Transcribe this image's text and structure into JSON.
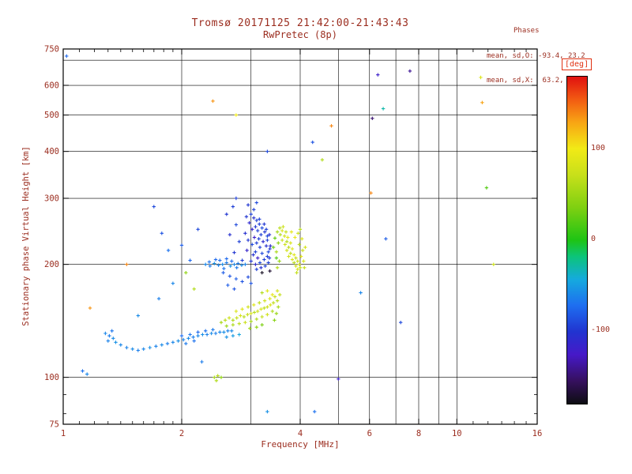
{
  "colors": {
    "ink": "#9b2d1f",
    "frame": "#000000",
    "deg_box_border": "#e03010",
    "background": "#ffffff"
  },
  "chart_data": {
    "type": "scatter",
    "title": "Tromsø 20171125 21:42:00-21:43:43",
    "subtitle": "RwPretec (8p)",
    "annotations": {
      "header": "Phases",
      "o_line": "mean, sd,O: -93.4, 23.2",
      "x_line": "mean, sd,X:  63.2, 19.1"
    },
    "xlabel": "Frequency [MHz]",
    "ylabel": "Stationary phase Virtual Height [km]",
    "xscale": "log",
    "yscale": "log",
    "xlim": [
      1,
      16
    ],
    "ylim": [
      75,
      750
    ],
    "grid": true,
    "xticks": [
      {
        "v": 1,
        "label": "1"
      },
      {
        "v": 2,
        "label": "2"
      },
      {
        "v": 4,
        "label": "4"
      },
      {
        "v": 6,
        "label": "6"
      },
      {
        "v": 8,
        "label": "8"
      },
      {
        "v": 10,
        "label": "10"
      },
      {
        "v": 16,
        "label": "16"
      }
    ],
    "xgrid": [
      2,
      3,
      4,
      5,
      6,
      7,
      8,
      9,
      10
    ],
    "xminor": [
      1.1,
      1.2,
      1.3,
      1.4,
      1.5,
      1.6,
      1.7,
      1.8,
      1.9,
      11,
      12,
      13,
      14,
      15
    ],
    "yticks": [
      {
        "v": 750,
        "label": "750"
      },
      {
        "v": 600,
        "label": "600"
      },
      {
        "v": 500,
        "label": "500"
      },
      {
        "v": 400,
        "label": "400"
      },
      {
        "v": 300,
        "label": "300"
      },
      {
        "v": 200,
        "label": "200"
      },
      {
        "v": 100,
        "label": "100"
      },
      {
        "v": 75,
        "label": "75"
      }
    ],
    "ygrid": [
      100,
      200,
      300,
      400,
      500,
      600,
      700
    ],
    "yminor": [
      80,
      90
    ],
    "colorbar": {
      "label": "[deg]",
      "min": -180,
      "max": 180,
      "ticks": [
        {
          "v": 100,
          "label": "100"
        },
        {
          "v": 0,
          "label": "0"
        },
        {
          "v": -100,
          "label": "-100"
        }
      ],
      "stops": [
        [
          0.0,
          "#0d0d12"
        ],
        [
          0.07,
          "#36105f"
        ],
        [
          0.15,
          "#4619c8"
        ],
        [
          0.22,
          "#2134d0"
        ],
        [
          0.3,
          "#1e6ef0"
        ],
        [
          0.38,
          "#15aade"
        ],
        [
          0.45,
          "#0cc47a"
        ],
        [
          0.5,
          "#1ec414"
        ],
        [
          0.6,
          "#7fd011"
        ],
        [
          0.7,
          "#c8e01a"
        ],
        [
          0.78,
          "#f2ea16"
        ],
        [
          0.86,
          "#f8a514"
        ],
        [
          0.93,
          "#f25b12"
        ],
        [
          1.0,
          "#e01010"
        ]
      ]
    },
    "points_format": [
      "frequency_MHz",
      "virtual_height_km",
      "phase_deg"
    ],
    "points": [
      [
        2.92,
        268,
        -100
      ],
      [
        3.0,
        272,
        -95
      ],
      [
        3.05,
        266,
        -105
      ],
      [
        3.1,
        262,
        -95
      ],
      [
        2.97,
        258,
        -110
      ],
      [
        3.15,
        256,
        -95
      ],
      [
        3.08,
        252,
        -100
      ],
      [
        3.2,
        250,
        -90
      ],
      [
        3.02,
        248,
        -115
      ],
      [
        3.12,
        246,
        -95
      ],
      [
        3.25,
        244,
        -100
      ],
      [
        2.9,
        242,
        -105
      ],
      [
        3.18,
        240,
        -95
      ],
      [
        3.3,
        238,
        -90
      ],
      [
        3.06,
        236,
        -120
      ],
      [
        3.14,
        234,
        -95
      ],
      [
        2.95,
        232,
        -100
      ],
      [
        3.22,
        230,
        -110
      ],
      [
        3.1,
        228,
        -95
      ],
      [
        3.02,
        226,
        -90
      ],
      [
        3.28,
        224,
        -105
      ],
      [
        3.16,
        222,
        -95
      ],
      [
        3.35,
        220,
        -100
      ],
      [
        2.93,
        218,
        -115
      ],
      [
        3.08,
        216,
        -95
      ],
      [
        3.2,
        214,
        -90
      ],
      [
        3.04,
        212,
        -105
      ],
      [
        3.3,
        210,
        -95
      ],
      [
        3.12,
        208,
        -120
      ],
      [
        3.24,
        206,
        -95
      ],
      [
        3.0,
        204,
        -100
      ],
      [
        3.16,
        202,
        -90
      ],
      [
        3.08,
        200,
        -110
      ],
      [
        3.26,
        198,
        -95
      ],
      [
        3.18,
        196,
        -105
      ],
      [
        3.1,
        194,
        -95
      ],
      [
        3.32,
        202,
        -95
      ],
      [
        3.34,
        208,
        -100
      ],
      [
        3.32,
        216,
        -90
      ],
      [
        3.36,
        224,
        -110
      ],
      [
        3.3,
        232,
        -95
      ],
      [
        3.34,
        240,
        -105
      ],
      [
        3.28,
        248,
        -95
      ],
      [
        3.24,
        256,
        -100
      ],
      [
        3.15,
        264,
        -95
      ],
      [
        3.05,
        280,
        -95
      ],
      [
        2.95,
        288,
        -100
      ],
      [
        3.1,
        292,
        -90
      ],
      [
        2.7,
        285,
        -95
      ],
      [
        2.6,
        272,
        -100
      ],
      [
        2.75,
        255,
        -90
      ],
      [
        2.65,
        240,
        -105
      ],
      [
        2.8,
        230,
        -95
      ],
      [
        2.72,
        215,
        -100
      ],
      [
        2.85,
        205,
        -95
      ],
      [
        2.3,
        200,
        -60
      ],
      [
        2.36,
        198,
        -65
      ],
      [
        2.42,
        201,
        -55
      ],
      [
        2.48,
        199,
        -62
      ],
      [
        2.54,
        200,
        -58
      ],
      [
        2.6,
        202,
        -65
      ],
      [
        2.66,
        198,
        -55
      ],
      [
        2.72,
        200,
        -60
      ],
      [
        2.78,
        201,
        -65
      ],
      [
        2.84,
        199,
        -58
      ],
      [
        2.9,
        200,
        -62
      ],
      [
        2.5,
        205,
        -70
      ],
      [
        2.6,
        207,
        -75
      ],
      [
        2.56,
        195,
        -68
      ],
      [
        2.68,
        204,
        -72
      ],
      [
        2.76,
        196,
        -66
      ],
      [
        2.44,
        206,
        -74
      ],
      [
        2.35,
        203,
        -68
      ],
      [
        2.55,
        190,
        -80
      ],
      [
        2.65,
        186,
        -85
      ],
      [
        2.75,
        183,
        -80
      ],
      [
        2.85,
        180,
        -85
      ],
      [
        2.62,
        176,
        -80
      ],
      [
        2.72,
        172,
        -85
      ],
      [
        2.95,
        185,
        -90
      ],
      [
        3.0,
        178,
        -85
      ],
      [
        3.55,
        250,
        65
      ],
      [
        3.62,
        252,
        75
      ],
      [
        3.6,
        246,
        85
      ],
      [
        3.68,
        244,
        70
      ],
      [
        3.56,
        240,
        60
      ],
      [
        3.65,
        238,
        80
      ],
      [
        3.72,
        236,
        90
      ],
      [
        3.6,
        232,
        72
      ],
      [
        3.7,
        230,
        62
      ],
      [
        3.78,
        228,
        84
      ],
      [
        3.66,
        226,
        76
      ],
      [
        3.74,
        222,
        66
      ],
      [
        3.82,
        220,
        88
      ],
      [
        3.7,
        218,
        78
      ],
      [
        3.78,
        214,
        68
      ],
      [
        3.86,
        212,
        90
      ],
      [
        3.74,
        210,
        80
      ],
      [
        3.9,
        208,
        70
      ],
      [
        3.82,
        206,
        85
      ],
      [
        3.94,
        204,
        75
      ],
      [
        3.86,
        202,
        65
      ],
      [
        3.98,
        200,
        88
      ],
      [
        3.9,
        198,
        78
      ],
      [
        4.0,
        196,
        68
      ],
      [
        3.94,
        194,
        82
      ],
      [
        4.02,
        210,
        92
      ],
      [
        4.06,
        218,
        76
      ],
      [
        3.98,
        226,
        66
      ],
      [
        4.04,
        234,
        86
      ],
      [
        3.95,
        242,
        74
      ],
      [
        4.0,
        248,
        64
      ],
      [
        4.08,
        204,
        84
      ],
      [
        3.92,
        190,
        70
      ],
      [
        3.5,
        244,
        55
      ],
      [
        3.52,
        228,
        45
      ],
      [
        3.48,
        216,
        58
      ],
      [
        3.54,
        204,
        48
      ],
      [
        3.5,
        196,
        62
      ],
      [
        4.12,
        222,
        80
      ],
      [
        4.1,
        196,
        72
      ],
      [
        3.88,
        236,
        95
      ],
      [
        3.8,
        244,
        92
      ],
      [
        3.45,
        235,
        25
      ],
      [
        3.42,
        222,
        30
      ],
      [
        3.48,
        208,
        20
      ],
      [
        1.28,
        131,
        -60
      ],
      [
        1.31,
        129,
        -65
      ],
      [
        1.34,
        127,
        -58
      ],
      [
        1.3,
        125,
        -62
      ],
      [
        1.36,
        124,
        -55
      ],
      [
        1.33,
        133,
        -68
      ],
      [
        1.4,
        122,
        -60
      ],
      [
        1.45,
        120,
        -62
      ],
      [
        1.5,
        119,
        -58
      ],
      [
        1.55,
        118,
        -64
      ],
      [
        1.6,
        119,
        -60
      ],
      [
        1.66,
        120,
        -56
      ],
      [
        1.72,
        121,
        -62
      ],
      [
        1.78,
        122,
        -58
      ],
      [
        1.84,
        123,
        -64
      ],
      [
        1.9,
        124,
        -60
      ],
      [
        1.96,
        125,
        -56
      ],
      [
        2.02,
        126,
        -62
      ],
      [
        2.08,
        127,
        -58
      ],
      [
        2.14,
        128,
        -64
      ],
      [
        2.2,
        129,
        -60
      ],
      [
        2.26,
        130,
        -56
      ],
      [
        2.32,
        130,
        -62
      ],
      [
        2.38,
        131,
        -58
      ],
      [
        2.44,
        131,
        -64
      ],
      [
        2.5,
        132,
        -60
      ],
      [
        2.56,
        132,
        -56
      ],
      [
        2.62,
        133,
        -62
      ],
      [
        2.68,
        133,
        -58
      ],
      [
        2.0,
        129,
        -72
      ],
      [
        2.1,
        130,
        -68
      ],
      [
        2.2,
        132,
        -74
      ],
      [
        2.3,
        133,
        -70
      ],
      [
        2.4,
        134,
        -66
      ],
      [
        2.15,
        125,
        -70
      ],
      [
        2.05,
        123,
        -66
      ],
      [
        2.6,
        128,
        -55
      ],
      [
        2.7,
        129,
        -50
      ],
      [
        2.8,
        130,
        -45
      ],
      [
        2.52,
        140,
        55
      ],
      [
        2.58,
        142,
        65
      ],
      [
        2.64,
        144,
        75
      ],
      [
        2.7,
        142,
        60
      ],
      [
        2.76,
        144,
        70
      ],
      [
        2.82,
        146,
        80
      ],
      [
        2.88,
        145,
        62
      ],
      [
        2.94,
        147,
        72
      ],
      [
        3.0,
        148,
        82
      ],
      [
        3.06,
        149,
        64
      ],
      [
        3.12,
        150,
        74
      ],
      [
        3.18,
        152,
        84
      ],
      [
        3.24,
        153,
        66
      ],
      [
        3.3,
        154,
        76
      ],
      [
        3.36,
        156,
        86
      ],
      [
        3.42,
        158,
        68
      ],
      [
        2.6,
        137,
        50
      ],
      [
        2.7,
        138,
        58
      ],
      [
        2.8,
        139,
        66
      ],
      [
        2.9,
        140,
        74
      ],
      [
        3.0,
        141,
        54
      ],
      [
        3.1,
        143,
        62
      ],
      [
        3.2,
        145,
        70
      ],
      [
        3.3,
        147,
        78
      ],
      [
        3.4,
        150,
        58
      ],
      [
        2.75,
        150,
        85
      ],
      [
        2.85,
        152,
        90
      ],
      [
        2.95,
        154,
        78
      ],
      [
        3.05,
        156,
        88
      ],
      [
        3.15,
        158,
        68
      ],
      [
        3.25,
        160,
        76
      ],
      [
        3.35,
        162,
        84
      ],
      [
        3.45,
        164,
        72
      ],
      [
        3.5,
        160,
        64
      ],
      [
        3.52,
        154,
        56
      ],
      [
        3.48,
        148,
        48
      ],
      [
        3.44,
        142,
        40
      ],
      [
        3.1,
        136,
        45
      ],
      [
        3.2,
        138,
        35
      ],
      [
        2.98,
        135,
        52
      ],
      [
        3.4,
        166,
        92
      ],
      [
        3.3,
        170,
        88
      ],
      [
        3.2,
        168,
        60
      ],
      [
        3.5,
        170,
        80
      ],
      [
        3.55,
        166,
        70
      ],
      [
        1.55,
        146,
        -58
      ],
      [
        1.75,
        162,
        -64
      ],
      [
        1.9,
        178,
        -60
      ],
      [
        2.05,
        190,
        45
      ],
      [
        2.15,
        172,
        60
      ],
      [
        1.7,
        285,
        -90
      ],
      [
        1.78,
        242,
        -85
      ],
      [
        2.0,
        225,
        -80
      ],
      [
        2.2,
        248,
        -90
      ],
      [
        2.75,
        300,
        -95
      ],
      [
        1.45,
        200,
        140
      ],
      [
        1.17,
        153,
        135
      ],
      [
        2.1,
        205,
        -75
      ],
      [
        1.85,
        218,
        -70
      ],
      [
        1.02,
        718,
        -75
      ],
      [
        2.4,
        545,
        135
      ],
      [
        2.75,
        500,
        100
      ],
      [
        4.8,
        468,
        140
      ],
      [
        4.3,
        423,
        -85
      ],
      [
        3.3,
        400,
        -90
      ],
      [
        6.3,
        640,
        -120
      ],
      [
        7.6,
        655,
        -140
      ],
      [
        6.1,
        490,
        -150
      ],
      [
        11.5,
        630,
        85
      ],
      [
        11.6,
        540,
        130
      ],
      [
        6.05,
        310,
        140
      ],
      [
        6.6,
        234,
        -80
      ],
      [
        7.2,
        140,
        -90
      ],
      [
        5.7,
        168,
        -60
      ],
      [
        5.0,
        99,
        -120
      ],
      [
        4.35,
        81,
        -70
      ],
      [
        3.3,
        81,
        -55
      ],
      [
        2.42,
        100,
        55
      ],
      [
        2.47,
        101,
        65
      ],
      [
        2.52,
        100,
        45
      ],
      [
        2.45,
        98,
        60
      ],
      [
        2.25,
        110,
        -65
      ],
      [
        1.12,
        104,
        -70
      ],
      [
        1.15,
        102,
        -60
      ],
      [
        11.9,
        320,
        20
      ],
      [
        12.4,
        200,
        75
      ],
      [
        3.2,
        190,
        -175
      ],
      [
        3.35,
        192,
        -170
      ],
      [
        6.5,
        520,
        -30
      ],
      [
        4.55,
        380,
        60
      ]
    ]
  }
}
